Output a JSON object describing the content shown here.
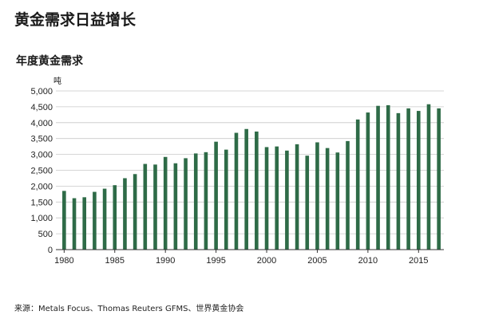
{
  "header": {
    "title": "黄金需求日益增长"
  },
  "chart_data": {
    "type": "bar",
    "title": "年度黄金需求",
    "ylabel": "吨",
    "xlabel": "",
    "ylim": [
      0,
      5000
    ],
    "yticks": [
      0,
      500,
      1000,
      1500,
      2000,
      2500,
      3000,
      3500,
      4000,
      4500,
      5000
    ],
    "ytick_labels": [
      "0",
      "500",
      "1,000",
      "1,500",
      "2,000",
      "2,500",
      "3,000",
      "3,500",
      "4,000",
      "4,500",
      "5,000"
    ],
    "xtick_labels": [
      "1980",
      "1985",
      "1990",
      "1995",
      "2000",
      "2005",
      "2010",
      "2015"
    ],
    "grid": true,
    "color": "#2e6b47",
    "categories": [
      "1980",
      "1981",
      "1982",
      "1983",
      "1984",
      "1985",
      "1986",
      "1987",
      "1988",
      "1989",
      "1990",
      "1991",
      "1992",
      "1993",
      "1994",
      "1995",
      "1996",
      "1997",
      "1998",
      "1999",
      "2000",
      "2001",
      "2002",
      "2003",
      "2004",
      "2005",
      "2006",
      "2007",
      "2008",
      "2009",
      "2010",
      "2011",
      "2012",
      "2013",
      "2014",
      "2015",
      "2016",
      "2017"
    ],
    "values": [
      1850,
      1620,
      1650,
      1820,
      1920,
      2030,
      2250,
      2380,
      2700,
      2680,
      2920,
      2720,
      2880,
      3030,
      3070,
      3400,
      3150,
      3680,
      3800,
      3720,
      3230,
      3250,
      3120,
      3320,
      2960,
      3380,
      3200,
      3060,
      3420,
      4100,
      4320,
      4530,
      4550,
      4300,
      4450,
      4370,
      4580,
      4450
    ]
  },
  "footer": {
    "source": "来源：Metals Focus、Thomas Reuters GFMS、世界黄金协会"
  }
}
